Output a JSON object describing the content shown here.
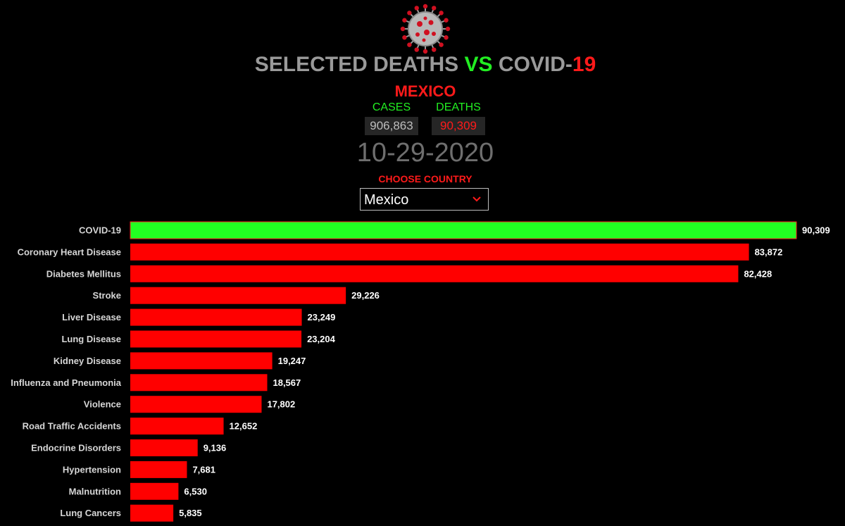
{
  "header": {
    "title_part1": "SELECTED DEATHS ",
    "title_part2": "VS",
    "title_part3": " COVID-",
    "title_part4": "19",
    "logo_icon": "coronavirus-icon"
  },
  "summary": {
    "country": "MEXICO",
    "cases_label": "CASES",
    "deaths_label": "DEATHS",
    "cases_value": "906,863",
    "deaths_value": "90,309",
    "date": "10-29-2020"
  },
  "country_selector": {
    "label": "CHOOSE COUNTRY",
    "selected": "Mexico",
    "icon": "chevron-down-icon"
  },
  "colors": {
    "covid_bar": "#22ff22",
    "other_bar": "#ff0000",
    "accent_red": "#ff1a1a",
    "accent_green": "#22ee22"
  },
  "chart_data": {
    "type": "bar",
    "orientation": "horizontal",
    "categories": [
      "COVID-19",
      "Coronary Heart Disease",
      "Diabetes Mellitus",
      "Stroke",
      "Liver Disease",
      "Lung Disease",
      "Kidney Disease",
      "Influenza and Pneumonia",
      "Violence",
      "Road Traffic Accidents",
      "Endocrine Disorders",
      "Hypertension",
      "Malnutrition",
      "Lung Cancers"
    ],
    "values": [
      90309,
      83872,
      82428,
      29226,
      23249,
      23204,
      19247,
      18567,
      17802,
      12652,
      9136,
      7681,
      6530,
      5835
    ],
    "value_labels": [
      "90,309",
      "83,872",
      "82,428",
      "29,226",
      "23,249",
      "23,204",
      "19,247",
      "18,567",
      "17,802",
      "12,652",
      "9,136",
      "7,681",
      "6,530",
      "5,835"
    ],
    "highlight_category": "COVID-19",
    "xlim": [
      0,
      90309
    ],
    "grid": false,
    "legend": "none"
  }
}
